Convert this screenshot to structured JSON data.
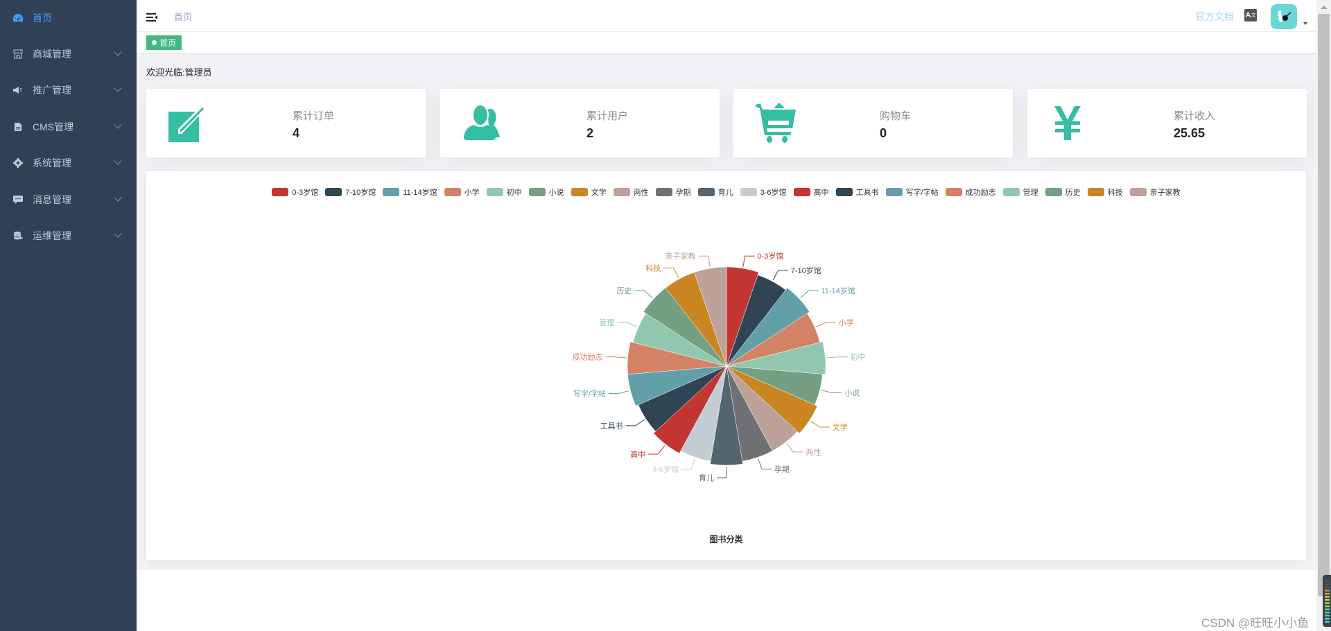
{
  "sidebar": {
    "bg": "#304156",
    "items": [
      {
        "label": "首页",
        "icon": "dashboard-icon",
        "active": true,
        "expandable": false
      },
      {
        "label": "商城管理",
        "icon": "shop-icon",
        "active": false,
        "expandable": true
      },
      {
        "label": "推广管理",
        "icon": "megaphone-icon",
        "active": false,
        "expandable": true
      },
      {
        "label": "CMS管理",
        "icon": "document-icon",
        "active": false,
        "expandable": true
      },
      {
        "label": "系统管理",
        "icon": "gear-icon",
        "active": false,
        "expandable": true
      },
      {
        "label": "消息管理",
        "icon": "message-icon",
        "active": false,
        "expandable": true
      },
      {
        "label": "运维管理",
        "icon": "server-icon",
        "active": false,
        "expandable": true
      }
    ]
  },
  "navbar": {
    "breadcrumb": "首页",
    "doc_link": "官方文档",
    "lang_icon": "A"
  },
  "tags": [
    {
      "label": "首页",
      "active": true,
      "color": "#42b983"
    }
  ],
  "welcome": "欢迎光临:管理员",
  "cards": [
    {
      "label": "累计订单",
      "value": "4",
      "icon": "edit-icon"
    },
    {
      "label": "累计用户",
      "value": "2",
      "icon": "users-icon"
    },
    {
      "label": "购物车",
      "value": "0",
      "icon": "cart-icon"
    },
    {
      "label": "累计收入",
      "value": "25.65",
      "icon": "yuan-icon"
    }
  ],
  "accent": "#36bea2",
  "chart_data": {
    "type": "pie",
    "title": "图书分类",
    "rose_type": "radius",
    "legend_position": "top",
    "categories": [
      "0-3岁馆",
      "7-10岁馆",
      "11-14岁馆",
      "小学",
      "初中",
      "小说",
      "文学",
      "两性",
      "孕期",
      "育儿",
      "3-6岁馆",
      "高中",
      "工具书",
      "写字/字帖",
      "成功励志",
      "管理",
      "历史",
      "科技",
      "亲子家教"
    ],
    "values": [
      1,
      1,
      1,
      1,
      1,
      1,
      1,
      1,
      1,
      1,
      1,
      1,
      1,
      1,
      1,
      1,
      1,
      1,
      1
    ],
    "colors": [
      "#c23531",
      "#2f4554",
      "#61a0a8",
      "#d48265",
      "#91c7ae",
      "#749f83",
      "#ca8622",
      "#bda29a",
      "#6e7074",
      "#546570",
      "#c4ccd3",
      "#c23531",
      "#2f4554",
      "#61a0a8",
      "#d48265",
      "#91c7ae",
      "#749f83",
      "#ca8622",
      "#bda29a"
    ],
    "radii": [
      143,
      139,
      143,
      139,
      143,
      139,
      143,
      139,
      139,
      143,
      139,
      143,
      139,
      143,
      143,
      139,
      143,
      143,
      143
    ]
  },
  "watermark": "CSDN @旺旺小小鱼"
}
